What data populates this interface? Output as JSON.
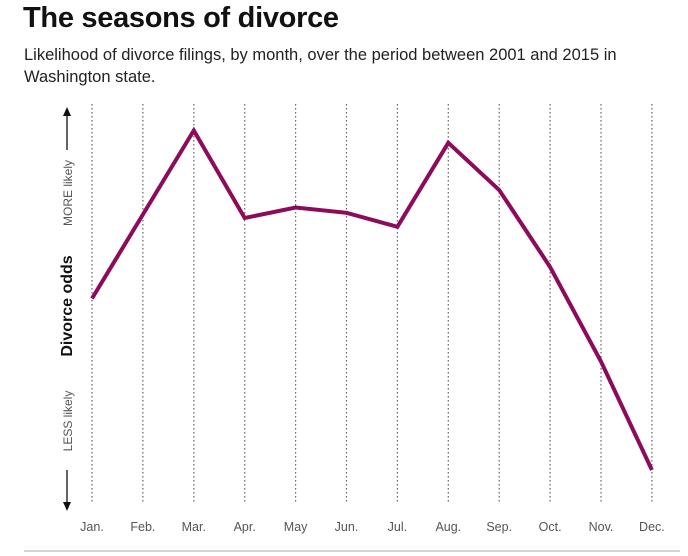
{
  "title": "The seasons of divorce",
  "subtitle": "Likelihood of divorce filings, by month, over the period between 2001 and 2015 in Washington state.",
  "colors": {
    "line": "#8c0b5b",
    "grid": "#666666",
    "axis": "#111111",
    "rule": "#aaaaaa"
  },
  "chart_data": {
    "type": "line",
    "title": "The seasons of divorce",
    "subtitle": "Likelihood of divorce filings, by month, over the period between 2001 and 2015 in Washington state.",
    "ylabel": "Divorce odds",
    "y_top_label": "MORE likely",
    "y_bottom_label": "LESS likely",
    "categories": [
      "Jan.",
      "Feb.",
      "Mar.",
      "Apr.",
      "May",
      "Jun.",
      "Jul.",
      "Aug.",
      "Sep.",
      "Oct.",
      "Nov.",
      "Dec."
    ],
    "series": [
      {
        "values": [
          0.49,
          0.73,
          0.97,
          0.72,
          0.75,
          0.735,
          0.695,
          0.935,
          0.8,
          0.58,
          0.31,
          0.0
        ]
      }
    ],
    "ylim": [
      0,
      1
    ],
    "grid": "vertical dotted",
    "legend": "none"
  }
}
